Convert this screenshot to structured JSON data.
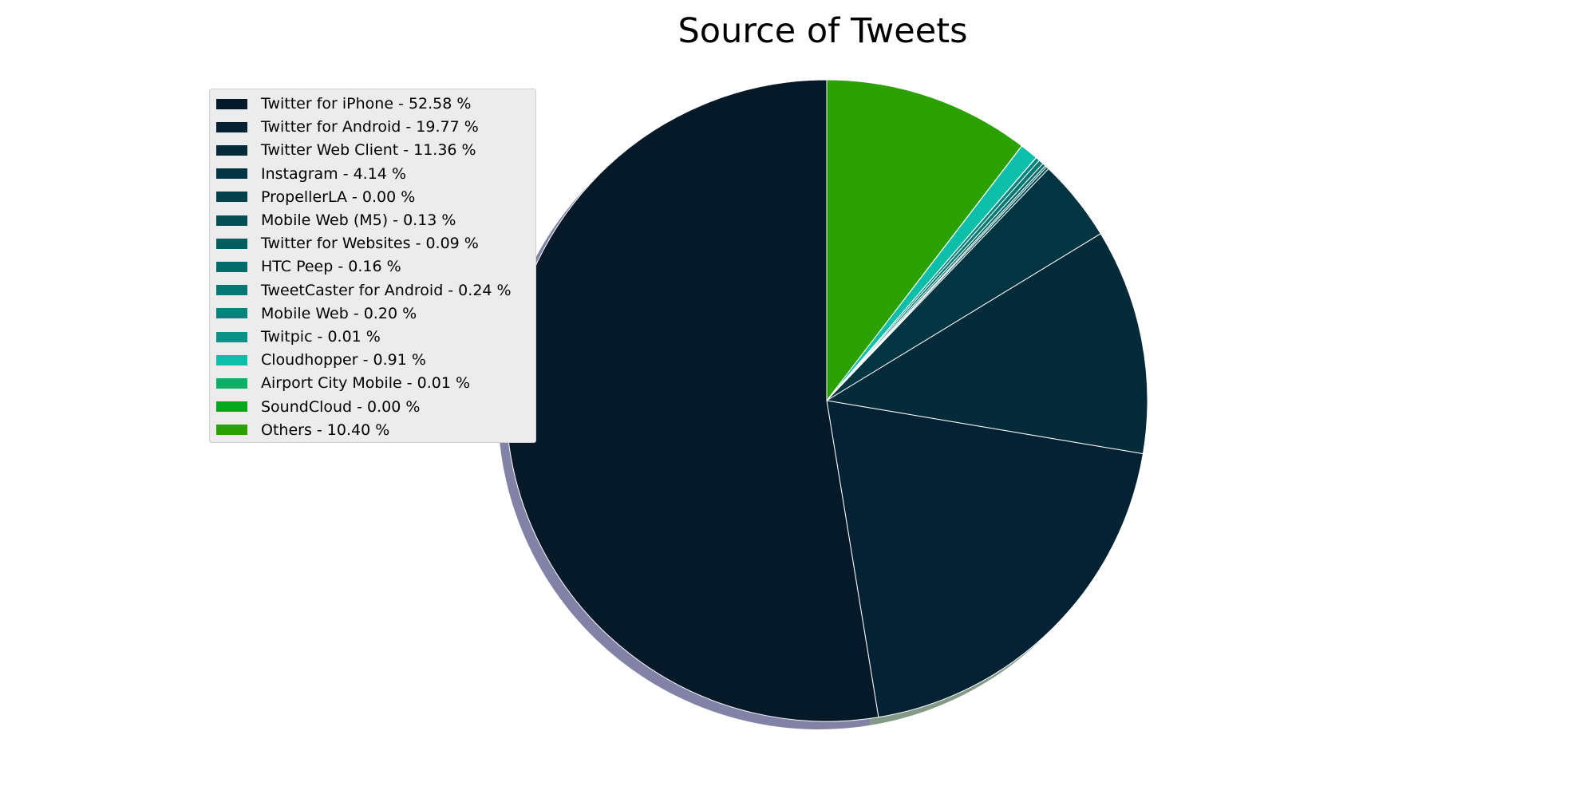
{
  "chart_data": {
    "type": "pie",
    "title": "Source of Tweets",
    "legend_position": "upper-left",
    "start": "top, clockwise from Others",
    "shadow": true,
    "slices": [
      {
        "label": "Twitter for iPhone - 52.58 %",
        "name": "Twitter for iPhone",
        "value": 52.58,
        "color": "#061929"
      },
      {
        "label": "Twitter for Android - 19.77 %",
        "name": "Twitter for Android",
        "value": 19.77,
        "color": "#042234"
      },
      {
        "label": "Twitter Web Client - 11.36 %",
        "name": "Twitter Web Client",
        "value": 11.36,
        "color": "#052b3b"
      },
      {
        "label": "Instagram - 4.14 %",
        "name": "Instagram",
        "value": 4.14,
        "color": "#033441"
      },
      {
        "label": "PropellerLA - 0.00 %",
        "name": "PropellerLA",
        "value": 0.0,
        "color": "#043f4c"
      },
      {
        "label": "Mobile Web (M5) - 0.13 %",
        "name": "Mobile Web (M5)",
        "value": 0.13,
        "color": "#034d55"
      },
      {
        "label": "Twitter for Websites - 0.09 %",
        "name": "Twitter for Websites",
        "value": 0.09,
        "color": "#045d5f"
      },
      {
        "label": "HTC Peep - 0.16 %",
        "name": "HTC Peep",
        "value": 0.16,
        "color": "#046b6a"
      },
      {
        "label": "TweetCaster for Android - 0.24 %",
        "name": "TweetCaster for Android",
        "value": 0.24,
        "color": "#067873"
      },
      {
        "label": "Mobile Web - 0.20 %",
        "name": "Mobile Web",
        "value": 0.2,
        "color": "#04827c"
      },
      {
        "label": "Twitpic - 0.01 %",
        "name": "Twitpic",
        "value": 0.01,
        "color": "#0b9088"
      },
      {
        "label": "Cloudhopper - 0.91 %",
        "name": "Cloudhopper",
        "value": 0.91,
        "color": "#0dbfa8"
      },
      {
        "label": "Airport City Mobile - 0.01 %",
        "name": "Airport City Mobile",
        "value": 0.01,
        "color": "#05b265"
      },
      {
        "label": "SoundCloud - 0.00 %",
        "name": "SoundCloud",
        "value": 0.0,
        "color": "#05a71c"
      },
      {
        "label": "Others - 10.40 %",
        "name": "Others",
        "value": 10.4,
        "color": "#2ca104"
      }
    ]
  }
}
